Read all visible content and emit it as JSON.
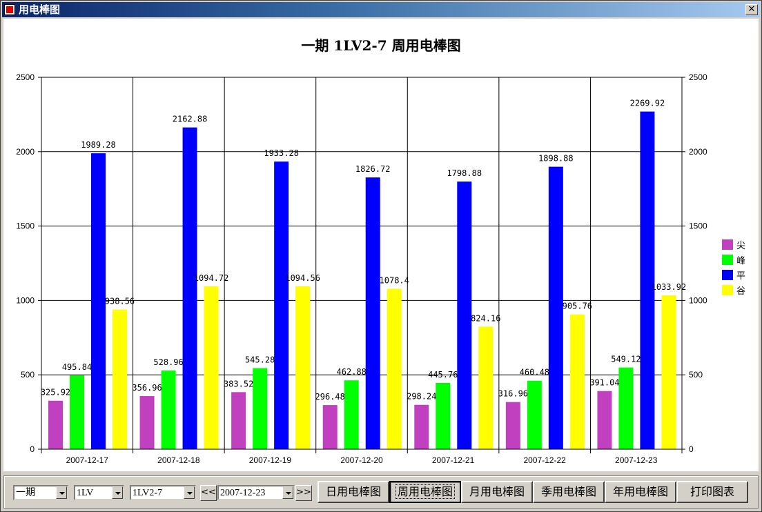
{
  "window": {
    "title": "用电棒图",
    "close_glyph": "✕"
  },
  "chart_data": {
    "type": "bar",
    "title": "一期 1LV2-7 周用电棒图",
    "categories": [
      "2007-12-17",
      "2007-12-18",
      "2007-12-19",
      "2007-12-20",
      "2007-12-21",
      "2007-12-22",
      "2007-12-23"
    ],
    "series": [
      {
        "name": "尖",
        "color": "#c040c0",
        "values": [
          325.92,
          356.96,
          383.52,
          296.48,
          298.24,
          316.96,
          391.04
        ]
      },
      {
        "name": "峰",
        "color": "#00ff00",
        "values": [
          495.84,
          528.96,
          545.28,
          462.88,
          445.76,
          460.48,
          549.12
        ]
      },
      {
        "name": "平",
        "color": "#0000ff",
        "values": [
          1989.28,
          2162.88,
          1933.28,
          1826.72,
          1798.88,
          1898.88,
          2269.92
        ]
      },
      {
        "name": "谷",
        "color": "#ffff00",
        "values": [
          938.56,
          1094.72,
          1094.56,
          1078.4,
          824.16,
          905.76,
          1033.92
        ]
      }
    ],
    "data_labels": [
      [
        "325.92",
        "495.84",
        "1989.28",
        "938.56"
      ],
      [
        "356.96",
        "528.96",
        "2162.88",
        "1094.72"
      ],
      [
        "383.52",
        "545.28",
        "1933.28",
        "1094.56"
      ],
      [
        "296.48",
        "462.88",
        "1826.72",
        "1078.4"
      ],
      [
        "298.24",
        "445.76",
        "1798.88",
        "824.16"
      ],
      [
        "316.96",
        "460.48",
        "1898.88",
        "905.76"
      ],
      [
        "391.04",
        "549.12",
        "2269.92",
        "1033.92"
      ]
    ],
    "ylim": [
      0,
      2500
    ],
    "yticks": [
      "0",
      "500",
      "1000",
      "1500",
      "2000",
      "2500"
    ],
    "grid": true,
    "legend_position": "right",
    "dual_y_axis": true
  },
  "toolbar": {
    "combo_phase": "一期",
    "combo_line": "1LV",
    "combo_device": "1LV2-7",
    "prev_label": "<<",
    "date_value": "2007-12-23",
    "next_label": ">>",
    "buttons": {
      "daily": "日用电棒图",
      "weekly": "周用电棒图",
      "monthly": "月用电棒图",
      "quarterly": "季用电棒图",
      "yearly": "年用电棒图",
      "print": "打印图表"
    }
  }
}
